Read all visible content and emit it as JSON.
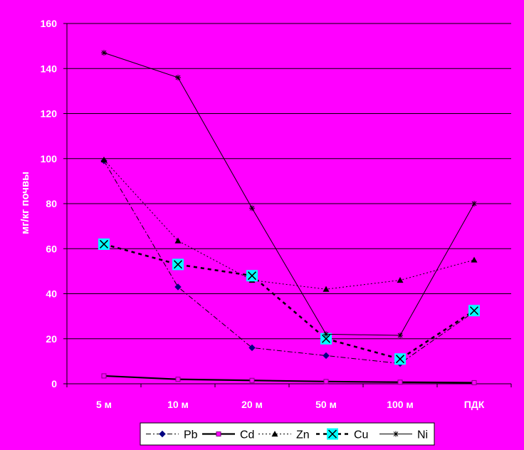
{
  "colors": {
    "background": "#FF00FF",
    "gridline": "#000000",
    "axis": "#000000",
    "tick_text": "#FFFFFF",
    "ylabel_text": "#FFFFFF",
    "legend_bg": "#FFFFFF",
    "legend_border": "#000000",
    "cu_marker_fill": "#00FFFF"
  },
  "chart_data": {
    "type": "line",
    "title": "",
    "xlabel": "",
    "ylabel": "мг/кг почвы",
    "categories": [
      "5 м",
      "10 м",
      "20 м",
      "50 м",
      "100 м",
      "ПДК"
    ],
    "ylim": [
      0,
      160
    ],
    "yticks": [
      0,
      20,
      40,
      60,
      80,
      100,
      120,
      140,
      160
    ],
    "grid": true,
    "legend_position": "bottom",
    "series": [
      {
        "name": "Pb",
        "values": [
          99,
          43,
          16,
          12.5,
          9,
          32
        ],
        "line": "dash-dot",
        "marker": "diamond",
        "marker_color": "#000080"
      },
      {
        "name": "Cd",
        "values": [
          3.5,
          2,
          1.5,
          1,
          0.7,
          0.5
        ],
        "line": "solid-thick",
        "marker": "square",
        "marker_color": "#FF00FF"
      },
      {
        "name": "Zn",
        "values": [
          99.5,
          63.5,
          46,
          42,
          46,
          55
        ],
        "line": "dotted",
        "marker": "triangle",
        "marker_color": "#000000"
      },
      {
        "name": "Cu",
        "values": [
          62,
          53,
          48,
          20,
          11,
          32.5
        ],
        "line": "dashed-thick",
        "marker": "x-square",
        "marker_color": "#00FFFF"
      },
      {
        "name": "Ni",
        "values": [
          147,
          136,
          78,
          22,
          21.5,
          80
        ],
        "line": "solid-thin",
        "marker": "star",
        "marker_color": "#000000"
      }
    ]
  }
}
